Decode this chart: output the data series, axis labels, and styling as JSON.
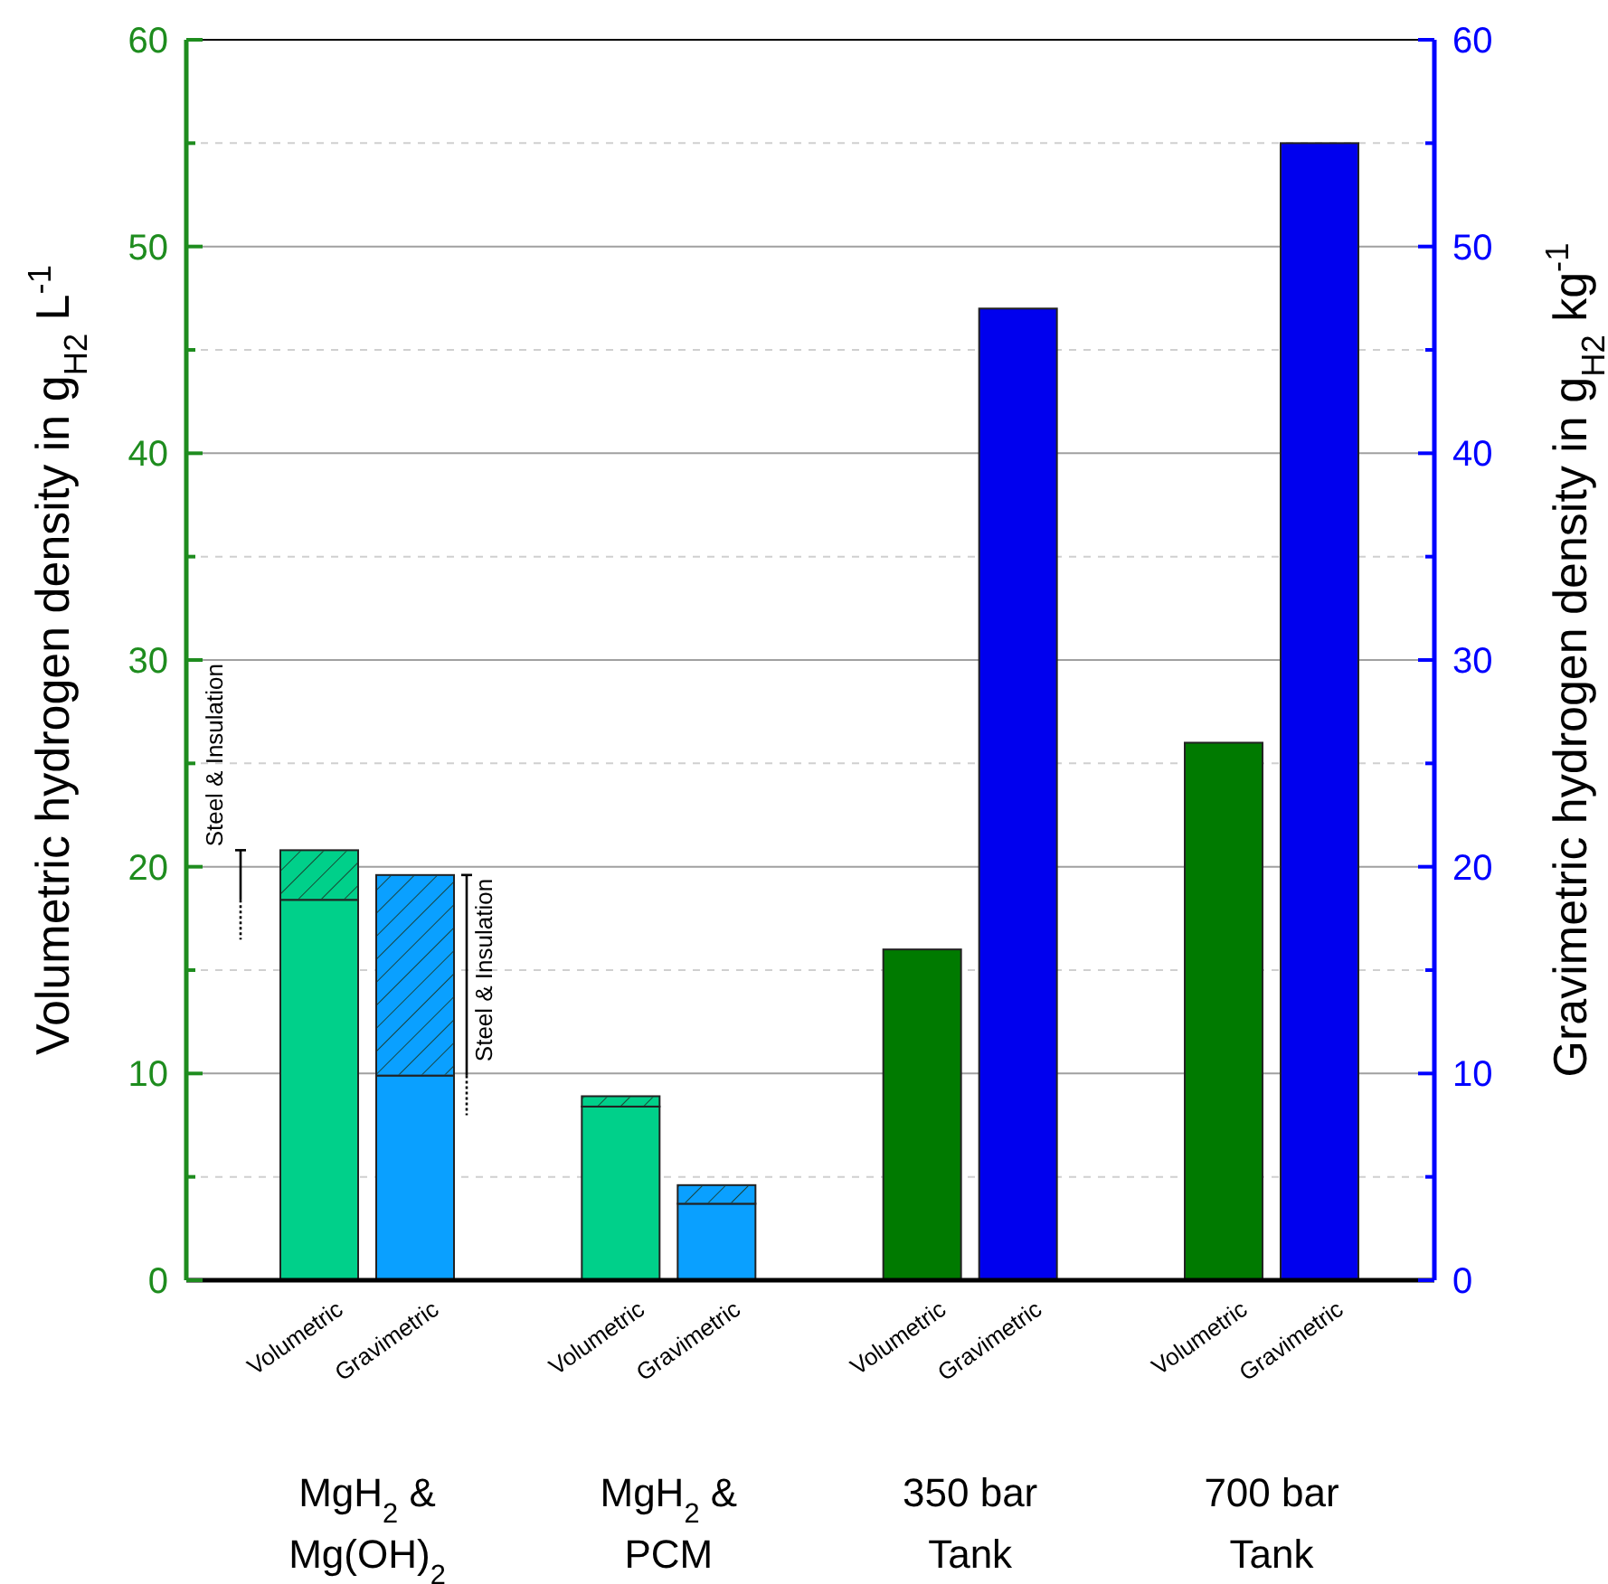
{
  "chart_data": {
    "type": "bar",
    "stacked": true,
    "categories": [
      "MgH$_{2}$ & Mg(OH)$_{2}$",
      "MgH$_{2}$ & PCM",
      "350 bar Tank",
      "700 bar Tank"
    ],
    "series": [
      {
        "name": "Volumetric",
        "axis": "y",
        "values": [
          18.4,
          8.4,
          16,
          26
        ],
        "colors": [
          "#00d08a",
          "#00d08a",
          "#007a00",
          "#007a00"
        ]
      },
      {
        "name": "Steel & Insulation",
        "axis": "y",
        "values": [
          2.4,
          0.5,
          null,
          null
        ],
        "color": "#00d08a"
      },
      {
        "name": "Gravimetric",
        "axis": "y2",
        "values": [
          9.9,
          3.7,
          47,
          55
        ],
        "colors": [
          "#0aa0ff",
          "#0aa0ff",
          "#0000ee",
          "#0000ee"
        ]
      },
      {
        "name": "Steel & Insulation",
        "axis": "y2",
        "values": [
          9.7,
          0.9,
          null,
          null
        ],
        "color": "#0aa0ff"
      }
    ],
    "ylabel": "Volumetric hydrogen density in g$_{H2}$ L$^{-1}$",
    "y2label": "Gravimetric hydrogen density in g$_{H2}$ kg$^{-1}$",
    "ylim": [
      0,
      60
    ],
    "yticks": [
      0,
      {
        "value": 5,
        "label": null
      },
      10,
      {
        "value": 15,
        "label": null
      },
      20,
      {
        "value": 25,
        "label": null
      },
      30,
      {
        "value": 35,
        "label": null
      },
      40,
      {
        "value": 45,
        "label": null
      },
      50,
      {
        "value": 55,
        "label": null
      },
      60
    ],
    "y2lim": [
      0,
      60
    ],
    "y2ticks": [
      0,
      {
        "value": 5,
        "label": null
      },
      10,
      {
        "value": 15,
        "label": null
      },
      20,
      {
        "value": 25,
        "label": null
      },
      30,
      {
        "value": 35,
        "label": null
      },
      40,
      {
        "value": 45,
        "label": null
      },
      50,
      {
        "value": 55,
        "label": null
      },
      60
    ],
    "grid": "y",
    "legend": false
  }
}
